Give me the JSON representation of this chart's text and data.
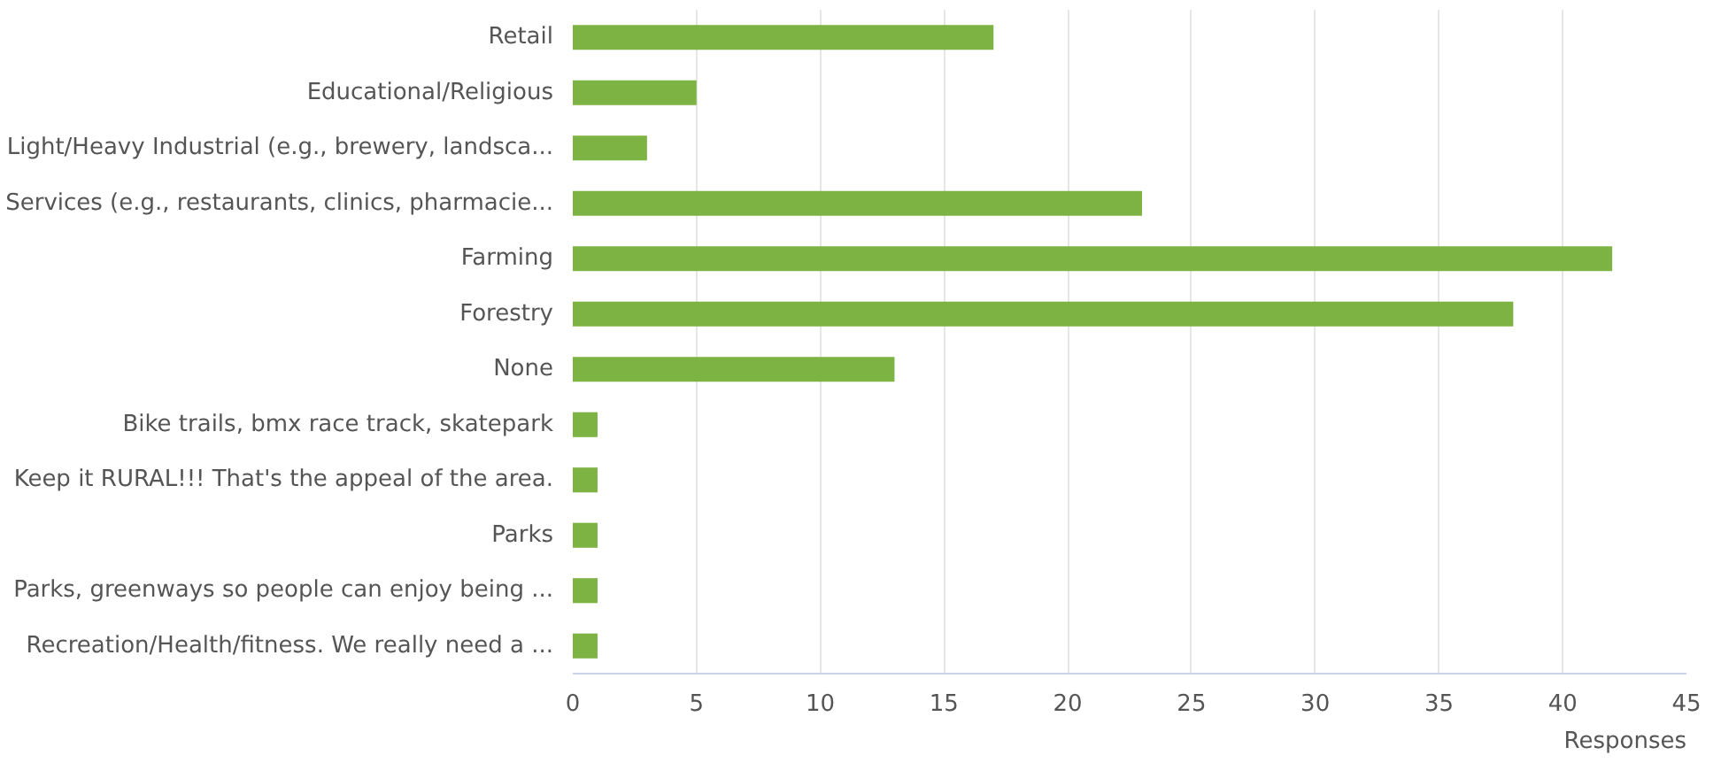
{
  "chart_data": {
    "type": "bar",
    "orientation": "horizontal",
    "xlabel": "Responses",
    "categories": [
      "Retail",
      "Educational/Religious",
      "Light/Heavy Industrial (e.g., brewery, landsca...",
      "Services (e.g., restaurants, clinics, pharmacie...",
      "Farming",
      "Forestry",
      "None",
      "Bike trails, bmx race track, skatepark",
      "Keep it RURAL!!! That's the appeal of the area.",
      "Parks",
      "Parks, greenways so people can enjoy being ...",
      "Recreation/Health/fitness. We really need a ..."
    ],
    "values": [
      17,
      5,
      3,
      23,
      42,
      38,
      13,
      1,
      1,
      1,
      1,
      1
    ],
    "color": "#7cb342",
    "xlim": [
      0,
      45
    ],
    "xticks": [
      0,
      5,
      10,
      15,
      20,
      25,
      30,
      35,
      40,
      45
    ],
    "grid": "x"
  }
}
